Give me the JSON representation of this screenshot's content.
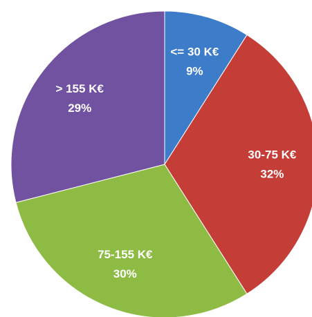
{
  "chart_data": {
    "type": "pie",
    "categories": [
      "<= 30 K€",
      "30-75 K€",
      "75-155 K€",
      "> 155 K€"
    ],
    "values": [
      9,
      32,
      30,
      29
    ],
    "value_labels": [
      "9%",
      "32%",
      "30%",
      "29%"
    ],
    "colors": [
      "#3d7cc9",
      "#c43d36",
      "#8dbb44",
      "#7152a0"
    ]
  }
}
